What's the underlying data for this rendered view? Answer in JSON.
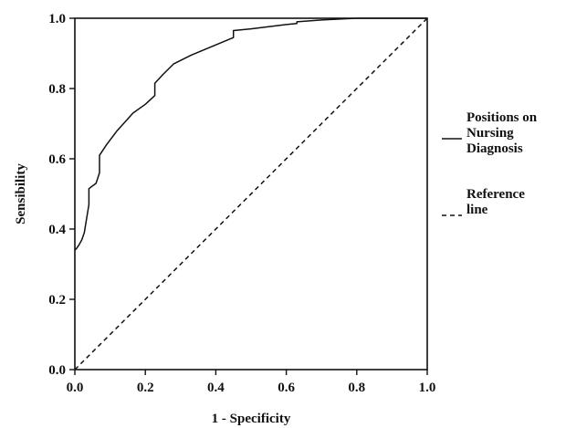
{
  "chart_data": {
    "type": "line",
    "title": "",
    "xlabel": "1 - Specificity",
    "ylabel": "Sensibility",
    "xlim": [
      0,
      1
    ],
    "ylim": [
      0,
      1
    ],
    "x_ticks": [
      "0.0",
      "0.2",
      "0.4",
      "0.6",
      "0.8",
      "1.0"
    ],
    "y_ticks": [
      "0.0",
      "0.2",
      "0.4",
      "0.6",
      "0.8",
      "1.0"
    ],
    "grid": false,
    "legend_position": "right",
    "series": [
      {
        "name": "Positions on Nursing Diagnosis",
        "legend_lines": [
          "Positions on",
          "Nursing",
          "Diagnosis"
        ],
        "line_style": "solid",
        "color": "#111111",
        "x": [
          0.0,
          0.005,
          0.012,
          0.02,
          0.027,
          0.03,
          0.035,
          0.04,
          0.04,
          0.06,
          0.07,
          0.07,
          0.09,
          0.12,
          0.165,
          0.2,
          0.227,
          0.227,
          0.25,
          0.28,
          0.33,
          0.45,
          0.45,
          0.5,
          0.6,
          0.63,
          0.63,
          0.7,
          0.8,
          0.9,
          1.0
        ],
        "y": [
          0.34,
          0.345,
          0.355,
          0.37,
          0.39,
          0.41,
          0.44,
          0.47,
          0.515,
          0.53,
          0.56,
          0.61,
          0.64,
          0.68,
          0.73,
          0.755,
          0.78,
          0.815,
          0.84,
          0.87,
          0.895,
          0.945,
          0.965,
          0.97,
          0.982,
          0.985,
          0.99,
          0.995,
          1.0,
          1.0,
          1.0
        ]
      },
      {
        "name": "Reference line",
        "legend_lines": [
          "Reference",
          "line"
        ],
        "line_style": "dashed",
        "color": "#111111",
        "x": [
          0,
          1
        ],
        "y": [
          0,
          1
        ]
      }
    ]
  }
}
